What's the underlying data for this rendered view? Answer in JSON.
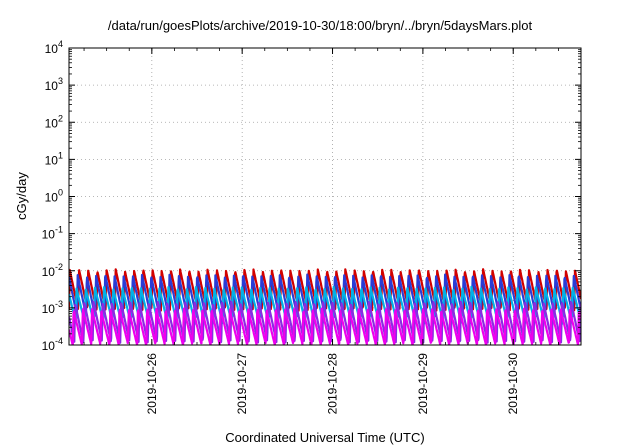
{
  "chart_data": {
    "type": "line",
    "title": "/data/run/goesPlots/archive/2019-10-30/18:00/bryn/../bryn/5daysMars.plot",
    "xlabel": "Coordinated Universal Time (UTC)",
    "ylabel": "cGy/day",
    "yscale": "log",
    "ylim": [
      0.0001,
      10000
    ],
    "xlim": [
      "2019-10-25T02:00",
      "2019-10-30T18:00"
    ],
    "grid": true,
    "x_ticks": [
      {
        "at": "2019-10-26T00:00",
        "label": "2019-10-26"
      },
      {
        "at": "2019-10-27T00:00",
        "label": "2019-10-27"
      },
      {
        "at": "2019-10-28T00:00",
        "label": "2019-10-28"
      },
      {
        "at": "2019-10-29T00:00",
        "label": "2019-10-29"
      },
      {
        "at": "2019-10-30T00:00",
        "label": "2019-10-30"
      }
    ],
    "y_ticks": [
      {
        "base": "10",
        "exp": "-4",
        "value": 0.0001
      },
      {
        "base": "10",
        "exp": "-3",
        "value": 0.001
      },
      {
        "base": "10",
        "exp": "-2",
        "value": 0.01
      },
      {
        "base": "10",
        "exp": "-1",
        "value": 0.1
      },
      {
        "base": "10",
        "exp": "0",
        "value": 1
      },
      {
        "base": "10",
        "exp": "1",
        "value": 10
      },
      {
        "base": "10",
        "exp": "2",
        "value": 100
      },
      {
        "base": "10",
        "exp": "3",
        "value": 1000
      },
      {
        "base": "10",
        "exp": "4",
        "value": 10000
      }
    ],
    "series": [
      {
        "color": "#d10000",
        "period_hours": 2.44,
        "phase": 0.0,
        "peak": 0.0105,
        "trough": 0.0009
      },
      {
        "color": "#2a3cd6",
        "period_hours": 2.44,
        "phase": 0.14,
        "peak": 0.0075,
        "trough": 0.0006
      },
      {
        "color": "#00b2e8",
        "period_hours": 2.44,
        "phase": 0.27,
        "peak": 0.0035,
        "trough": 0.0004
      },
      {
        "color": "#8a2be2",
        "period_hours": 2.44,
        "phase": 0.42,
        "peak": 0.0014,
        "trough": 0.00012
      },
      {
        "color": "#ee00ee",
        "period_hours": 2.44,
        "phase": 0.58,
        "peak": 0.0009,
        "trough": 0.0001
      }
    ]
  }
}
